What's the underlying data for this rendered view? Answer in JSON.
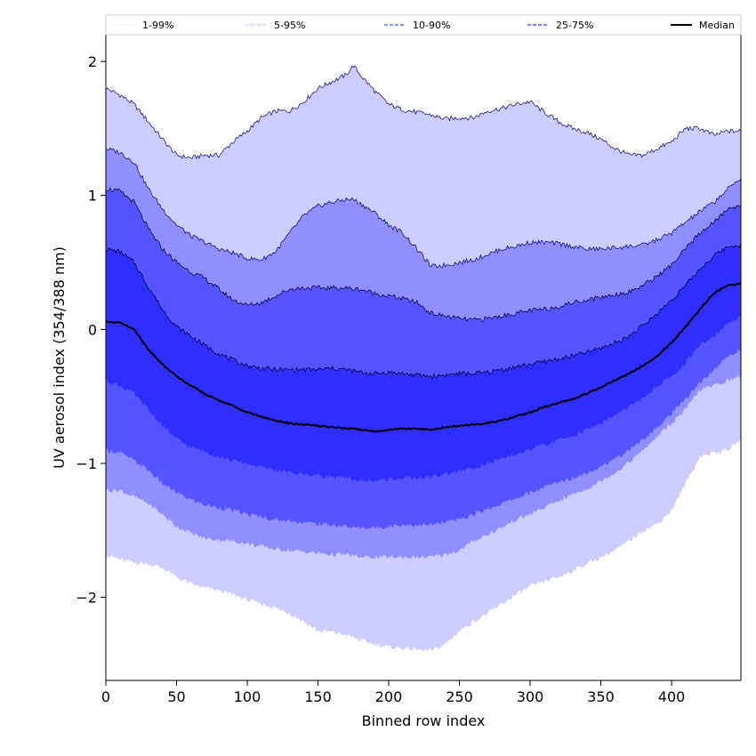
{
  "chart_data": {
    "type": "area",
    "title": "",
    "xlabel": "Binned row index",
    "ylabel": "UV aerosol index (354/388 nm)",
    "xlim": [
      0,
      449
    ],
    "ylim": [
      -2.62,
      2.2
    ],
    "x_ticks": [
      0,
      50,
      100,
      150,
      200,
      250,
      300,
      350,
      400
    ],
    "x_tick_labels": [
      "0",
      "50",
      "100",
      "150",
      "200",
      "250",
      "300",
      "350",
      "400"
    ],
    "y_ticks": [
      2,
      1,
      0,
      -1,
      -2
    ],
    "y_tick_labels": [
      "2",
      "1",
      "0",
      "−1",
      "−2"
    ],
    "grid": false,
    "legend_position": "top",
    "colors": {
      "band_1_99": "#cdcdff",
      "band_5_95": "#8f8fff",
      "band_10_90": "#5555ff",
      "band_25_75": "#2e2eff",
      "edge_line": "#000080",
      "median": "#000000"
    },
    "legend": [
      {
        "label": "1-99%",
        "color": "#cdcdff",
        "style": "thin"
      },
      {
        "label": "5-95%",
        "color": "#8f8fff",
        "style": "thin"
      },
      {
        "label": "10-90%",
        "color": "#5555ff",
        "style": "dashed"
      },
      {
        "label": "25-75%",
        "color": "#2e2eff",
        "style": "dashed"
      },
      {
        "label": "Median",
        "color": "#000000",
        "style": "solid"
      }
    ],
    "x": [
      0,
      10,
      20,
      30,
      40,
      50,
      60,
      70,
      80,
      90,
      100,
      110,
      120,
      130,
      140,
      150,
      160,
      170,
      175,
      180,
      190,
      200,
      210,
      220,
      230,
      240,
      250,
      260,
      270,
      280,
      290,
      300,
      310,
      320,
      330,
      340,
      350,
      360,
      370,
      380,
      390,
      400,
      410,
      420,
      430,
      440,
      449
    ],
    "series": [
      {
        "name": "1-99%",
        "lower": [
          -1.68,
          -1.72,
          -1.74,
          -1.75,
          -1.78,
          -1.85,
          -1.9,
          -1.93,
          -1.95,
          -1.98,
          -2.02,
          -2.05,
          -2.08,
          -2.12,
          -2.18,
          -2.25,
          -2.26,
          -2.28,
          -2.3,
          -2.32,
          -2.35,
          -2.37,
          -2.38,
          -2.39,
          -2.4,
          -2.35,
          -2.25,
          -2.18,
          -2.12,
          -2.05,
          -1.98,
          -1.92,
          -1.88,
          -1.85,
          -1.8,
          -1.75,
          -1.7,
          -1.65,
          -1.58,
          -1.5,
          -1.45,
          -1.35,
          -1.15,
          -0.95,
          -0.92,
          -0.9,
          -0.82
        ],
        "upper": [
          1.8,
          1.75,
          1.68,
          1.55,
          1.42,
          1.3,
          1.28,
          1.3,
          1.3,
          1.4,
          1.48,
          1.58,
          1.63,
          1.63,
          1.7,
          1.8,
          1.85,
          1.9,
          1.97,
          1.9,
          1.78,
          1.68,
          1.64,
          1.62,
          1.6,
          1.57,
          1.58,
          1.58,
          1.63,
          1.65,
          1.68,
          1.7,
          1.62,
          1.55,
          1.5,
          1.47,
          1.42,
          1.35,
          1.3,
          1.3,
          1.35,
          1.4,
          1.5,
          1.5,
          1.45,
          1.48,
          1.48
        ]
      },
      {
        "name": "5-95%",
        "lower": [
          -1.2,
          -1.2,
          -1.25,
          -1.3,
          -1.38,
          -1.47,
          -1.52,
          -1.56,
          -1.57,
          -1.58,
          -1.6,
          -1.62,
          -1.64,
          -1.65,
          -1.66,
          -1.67,
          -1.68,
          -1.68,
          -1.69,
          -1.7,
          -1.7,
          -1.7,
          -1.7,
          -1.7,
          -1.7,
          -1.68,
          -1.65,
          -1.58,
          -1.53,
          -1.48,
          -1.42,
          -1.38,
          -1.33,
          -1.28,
          -1.23,
          -1.19,
          -1.13,
          -1.07,
          -0.99,
          -0.9,
          -0.8,
          -0.7,
          -0.6,
          -0.45,
          -0.42,
          -0.38,
          -0.35
        ],
        "upper": [
          1.35,
          1.32,
          1.25,
          1.05,
          0.9,
          0.78,
          0.7,
          0.65,
          0.6,
          0.57,
          0.53,
          0.52,
          0.58,
          0.72,
          0.85,
          0.92,
          0.95,
          0.97,
          0.97,
          0.94,
          0.87,
          0.78,
          0.72,
          0.6,
          0.47,
          0.48,
          0.5,
          0.52,
          0.56,
          0.6,
          0.62,
          0.65,
          0.65,
          0.64,
          0.62,
          0.6,
          0.6,
          0.61,
          0.62,
          0.63,
          0.67,
          0.72,
          0.8,
          0.88,
          0.95,
          1.05,
          1.13
        ]
      },
      {
        "name": "10-90%",
        "lower": [
          -0.9,
          -0.92,
          -0.98,
          -1.05,
          -1.15,
          -1.22,
          -1.27,
          -1.31,
          -1.33,
          -1.35,
          -1.38,
          -1.4,
          -1.42,
          -1.43,
          -1.44,
          -1.45,
          -1.46,
          -1.47,
          -1.48,
          -1.48,
          -1.48,
          -1.47,
          -1.46,
          -1.46,
          -1.46,
          -1.44,
          -1.42,
          -1.38,
          -1.34,
          -1.3,
          -1.26,
          -1.22,
          -1.18,
          -1.14,
          -1.11,
          -1.07,
          -1.02,
          -0.97,
          -0.9,
          -0.82,
          -0.73,
          -0.63,
          -0.52,
          -0.4,
          -0.3,
          -0.2,
          -0.15
        ],
        "upper": [
          1.05,
          1.03,
          0.95,
          0.75,
          0.6,
          0.5,
          0.43,
          0.38,
          0.3,
          0.22,
          0.18,
          0.2,
          0.25,
          0.3,
          0.31,
          0.31,
          0.31,
          0.31,
          0.3,
          0.3,
          0.27,
          0.25,
          0.23,
          0.2,
          0.12,
          0.1,
          0.08,
          0.07,
          0.08,
          0.1,
          0.12,
          0.14,
          0.15,
          0.17,
          0.2,
          0.22,
          0.24,
          0.26,
          0.28,
          0.33,
          0.4,
          0.48,
          0.6,
          0.72,
          0.8,
          0.9,
          0.93
        ]
      },
      {
        "name": "25-75%",
        "lower": [
          -0.38,
          -0.42,
          -0.48,
          -0.6,
          -0.72,
          -0.82,
          -0.88,
          -0.91,
          -0.95,
          -0.98,
          -1.0,
          -1.03,
          -1.05,
          -1.07,
          -1.08,
          -1.09,
          -1.1,
          -1.11,
          -1.12,
          -1.13,
          -1.13,
          -1.12,
          -1.11,
          -1.11,
          -1.1,
          -1.08,
          -1.06,
          -1.03,
          -1.0,
          -0.97,
          -0.93,
          -0.9,
          -0.86,
          -0.83,
          -0.79,
          -0.75,
          -0.7,
          -0.64,
          -0.58,
          -0.51,
          -0.43,
          -0.35,
          -0.25,
          -0.12,
          -0.05,
          0.05,
          0.1
        ],
        "upper": [
          0.6,
          0.58,
          0.5,
          0.32,
          0.15,
          0.02,
          -0.05,
          -0.12,
          -0.18,
          -0.23,
          -0.27,
          -0.29,
          -0.3,
          -0.3,
          -0.3,
          -0.3,
          -0.29,
          -0.3,
          -0.31,
          -0.32,
          -0.33,
          -0.32,
          -0.33,
          -0.34,
          -0.35,
          -0.34,
          -0.33,
          -0.33,
          -0.32,
          -0.3,
          -0.28,
          -0.26,
          -0.24,
          -0.22,
          -0.2,
          -0.17,
          -0.14,
          -0.1,
          -0.05,
          0.03,
          0.12,
          0.22,
          0.33,
          0.45,
          0.55,
          0.62,
          0.63
        ]
      },
      {
        "name": "Median",
        "values": [
          0.06,
          0.05,
          0.0,
          -0.15,
          -0.26,
          -0.35,
          -0.42,
          -0.48,
          -0.53,
          -0.57,
          -0.62,
          -0.65,
          -0.68,
          -0.7,
          -0.71,
          -0.72,
          -0.73,
          -0.74,
          -0.74,
          -0.75,
          -0.76,
          -0.75,
          -0.74,
          -0.74,
          -0.75,
          -0.73,
          -0.72,
          -0.71,
          -0.7,
          -0.68,
          -0.65,
          -0.62,
          -0.58,
          -0.55,
          -0.52,
          -0.48,
          -0.43,
          -0.38,
          -0.33,
          -0.27,
          -0.2,
          -0.1,
          0.02,
          0.15,
          0.27,
          0.33,
          0.34
        ]
      }
    ]
  }
}
